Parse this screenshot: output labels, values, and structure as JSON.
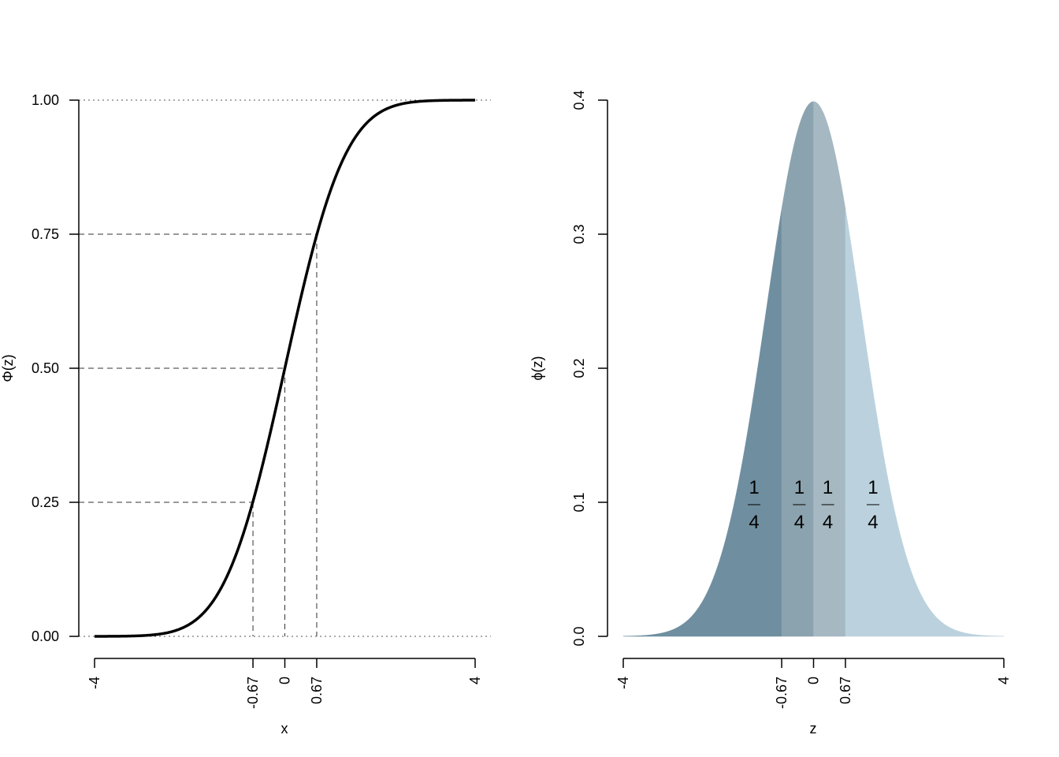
{
  "chart_data": [
    {
      "type": "line",
      "title": "",
      "xlabel": "x",
      "ylabel": "Φ(z)",
      "xlim": [
        -4,
        4
      ],
      "ylim": [
        0,
        1
      ],
      "x_ticks": [
        -4,
        -0.67,
        0,
        0.67,
        4
      ],
      "x_tick_labels": [
        "-4",
        "-0.67",
        "0",
        "0.67",
        "4"
      ],
      "y_ticks": [
        0,
        0.25,
        0.5,
        0.75,
        1
      ],
      "y_tick_labels": [
        "0.00",
        "0.25",
        "0.50",
        "0.75",
        "1.00"
      ],
      "curve": "standard normal CDF",
      "reference_lines_horizontal_dotted": [
        0,
        1
      ],
      "reference_lines_dashed": [
        {
          "x": -0.67,
          "y": 0.25
        },
        {
          "x": 0,
          "y": 0.5
        },
        {
          "x": 0.67,
          "y": 0.75
        }
      ],
      "grid": false
    },
    {
      "type": "area",
      "title": "",
      "xlabel": "z",
      "ylabel": "ϕ(z)",
      "xlim": [
        -4,
        4
      ],
      "ylim": [
        0,
        0.4
      ],
      "x_ticks": [
        -4,
        -0.67,
        0,
        0.67,
        4
      ],
      "x_tick_labels": [
        "-4",
        "-0.67",
        "0",
        "0.67",
        "4"
      ],
      "y_ticks": [
        0,
        0.1,
        0.2,
        0.3,
        0.4
      ],
      "y_tick_labels": [
        "0.0",
        "0.1",
        "0.2",
        "0.3",
        "0.4"
      ],
      "curve": "standard normal PDF",
      "regions": [
        {
          "from": -4,
          "to": -0.67,
          "color": "#6f8fa0",
          "label_num": "1",
          "label_den": "4",
          "label_x": -1.25
        },
        {
          "from": -0.67,
          "to": 0,
          "color": "#8ba3af",
          "label_num": "1",
          "label_den": "4",
          "label_x": -0.3
        },
        {
          "from": 0,
          "to": 0.67,
          "color": "#a6b8c2",
          "label_num": "1",
          "label_den": "4",
          "label_x": 0.3
        },
        {
          "from": 0.67,
          "to": 4,
          "color": "#bbd2de",
          "label_num": "1",
          "label_den": "4",
          "label_x": 1.25
        }
      ],
      "grid": false
    }
  ]
}
